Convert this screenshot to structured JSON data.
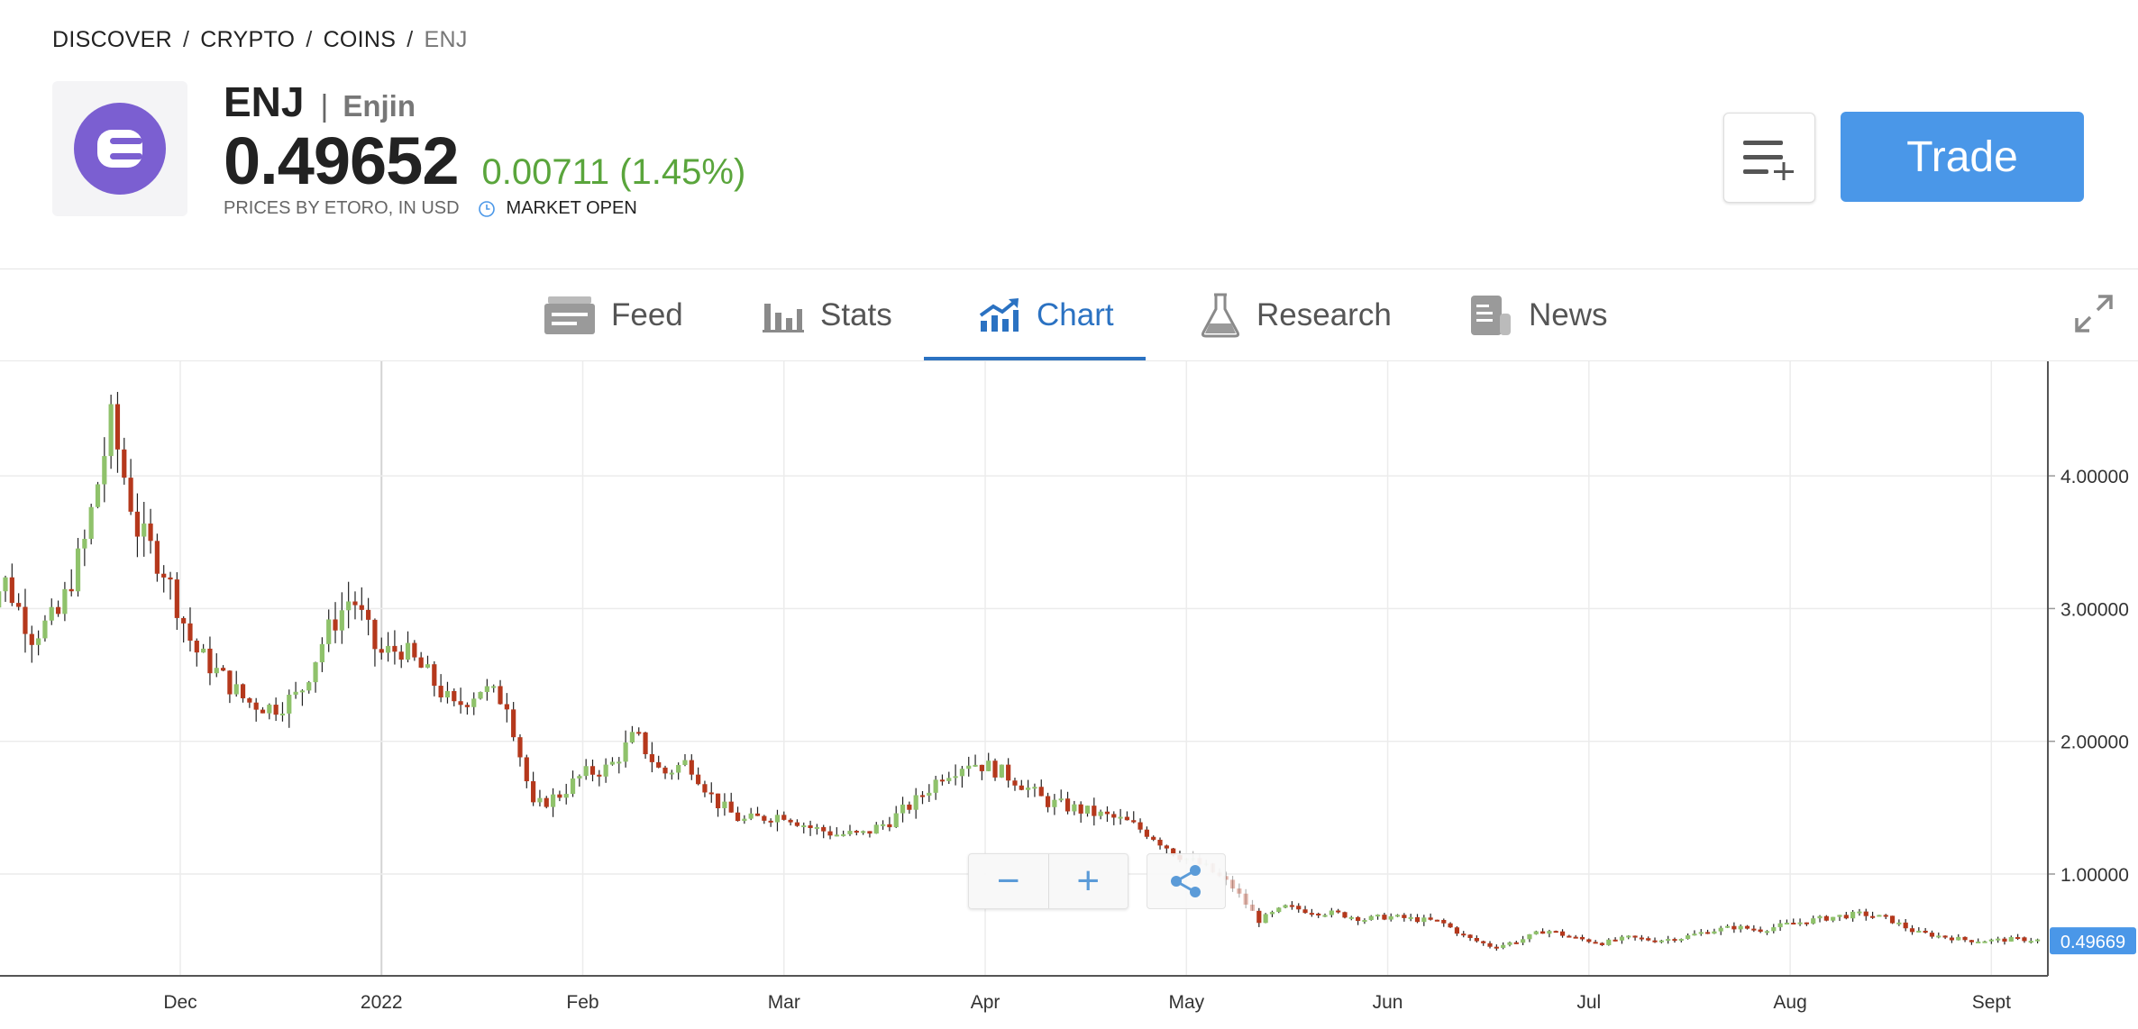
{
  "breadcrumb": [
    "DISCOVER",
    "CRYPTO",
    "COINS",
    "ENJ"
  ],
  "instrument": {
    "ticker": "ENJ",
    "separator": "|",
    "name": "Enjin",
    "price": "0.49652",
    "change": "0.00711 (1.45%)",
    "price_source": "PRICES BY ETORO, IN USD",
    "market_status": "MARKET OPEN",
    "logo_color": "#7b5fd1"
  },
  "actions": {
    "watchlist_icon": "add-to-list-icon",
    "trade_label": "Trade"
  },
  "tabs": [
    {
      "label": "Feed",
      "icon": "feed-icon"
    },
    {
      "label": "Stats",
      "icon": "stats-icon"
    },
    {
      "label": "Chart",
      "icon": "chart-icon",
      "active": true
    },
    {
      "label": "Research",
      "icon": "flask-icon"
    },
    {
      "label": "News",
      "icon": "news-icon"
    }
  ],
  "colors": {
    "accent": "#2b72c2",
    "trade": "#4a97e8",
    "up": "#8fc26b",
    "down": "#b5381c",
    "positive_text": "#5aa53c"
  },
  "chart_data": {
    "type": "candlestick",
    "x_ticks": [
      "Dec",
      "2022",
      "Feb",
      "Mar",
      "Apr",
      "May",
      "Jun",
      "Jul",
      "Aug",
      "Sept"
    ],
    "y_ticks": [
      "1.00000",
      "2.00000",
      "3.00000",
      "4.00000"
    ],
    "ylim": [
      0.1,
      4.7
    ],
    "grid": true,
    "current_price_label": "0.49669",
    "series": [
      {
        "date": "Nov 1",
        "value": 3.0
      },
      {
        "date": "Nov 5",
        "value": 3.2
      },
      {
        "date": "Nov 9",
        "value": 2.8
      },
      {
        "date": "Nov 13",
        "value": 2.95
      },
      {
        "date": "Nov 17",
        "value": 3.5
      },
      {
        "date": "Nov 21",
        "value": 4.4
      },
      {
        "date": "Nov 25",
        "value": 3.6
      },
      {
        "date": "Nov 29",
        "value": 3.3
      },
      {
        "date": "Dec 3",
        "value": 2.7
      },
      {
        "date": "Dec 7",
        "value": 2.5
      },
      {
        "date": "Dec 11",
        "value": 2.3
      },
      {
        "date": "Dec 15",
        "value": 2.25
      },
      {
        "date": "Dec 19",
        "value": 2.35
      },
      {
        "date": "Dec 23",
        "value": 2.8
      },
      {
        "date": "Dec 27",
        "value": 3.1
      },
      {
        "date": "Dec 31",
        "value": 2.65
      },
      {
        "date": "Jan 4",
        "value": 2.7
      },
      {
        "date": "Jan 8",
        "value": 2.5
      },
      {
        "date": "Jan 12",
        "value": 2.25
      },
      {
        "date": "Jan 16",
        "value": 2.4
      },
      {
        "date": "Jan 20",
        "value": 2.3
      },
      {
        "date": "Jan 24",
        "value": 1.5
      },
      {
        "date": "Jan 28",
        "value": 1.6
      },
      {
        "date": "Feb 1",
        "value": 1.75
      },
      {
        "date": "Feb 5",
        "value": 1.8
      },
      {
        "date": "Feb 9",
        "value": 2.05
      },
      {
        "date": "Feb 13",
        "value": 1.75
      },
      {
        "date": "Feb 17",
        "value": 1.85
      },
      {
        "date": "Feb 21",
        "value": 1.55
      },
      {
        "date": "Feb 25",
        "value": 1.4
      },
      {
        "date": "Mar 1",
        "value": 1.45
      },
      {
        "date": "Mar 5",
        "value": 1.35
      },
      {
        "date": "Mar 9",
        "value": 1.3
      },
      {
        "date": "Mar 13",
        "value": 1.3
      },
      {
        "date": "Mar 17",
        "value": 1.4
      },
      {
        "date": "Mar 21",
        "value": 1.55
      },
      {
        "date": "Mar 25",
        "value": 1.75
      },
      {
        "date": "Mar 29",
        "value": 1.85
      },
      {
        "date": "Apr 2",
        "value": 1.8
      },
      {
        "date": "Apr 6",
        "value": 1.7
      },
      {
        "date": "Apr 10",
        "value": 1.55
      },
      {
        "date": "Apr 14",
        "value": 1.5
      },
      {
        "date": "Apr 18",
        "value": 1.45
      },
      {
        "date": "Apr 22",
        "value": 1.4
      },
      {
        "date": "Apr 26",
        "value": 1.3
      },
      {
        "date": "Apr 30",
        "value": 1.15
      },
      {
        "date": "May 4",
        "value": 1.05
      },
      {
        "date": "May 8",
        "value": 0.9
      },
      {
        "date": "May 12",
        "value": 0.65
      },
      {
        "date": "May 16",
        "value": 0.75
      },
      {
        "date": "May 20",
        "value": 0.72
      },
      {
        "date": "May 24",
        "value": 0.7
      },
      {
        "date": "May 28",
        "value": 0.66
      },
      {
        "date": "Jun 1",
        "value": 0.68
      },
      {
        "date": "Jun 5",
        "value": 0.66
      },
      {
        "date": "Jun 9",
        "value": 0.64
      },
      {
        "date": "Jun 13",
        "value": 0.52
      },
      {
        "date": "Jun 17",
        "value": 0.45
      },
      {
        "date": "Jun 21",
        "value": 0.5
      },
      {
        "date": "Jun 25",
        "value": 0.58
      },
      {
        "date": "Jun 29",
        "value": 0.52
      },
      {
        "date": "Jul 3",
        "value": 0.48
      },
      {
        "date": "Jul 7",
        "value": 0.52
      },
      {
        "date": "Jul 11",
        "value": 0.5
      },
      {
        "date": "Jul 15",
        "value": 0.52
      },
      {
        "date": "Jul 19",
        "value": 0.57
      },
      {
        "date": "Jul 23",
        "value": 0.6
      },
      {
        "date": "Jul 27",
        "value": 0.58
      },
      {
        "date": "Jul 31",
        "value": 0.62
      },
      {
        "date": "Aug 4",
        "value": 0.65
      },
      {
        "date": "Aug 8",
        "value": 0.68
      },
      {
        "date": "Aug 12",
        "value": 0.7
      },
      {
        "date": "Aug 16",
        "value": 0.66
      },
      {
        "date": "Aug 20",
        "value": 0.56
      },
      {
        "date": "Aug 24",
        "value": 0.53
      },
      {
        "date": "Aug 28",
        "value": 0.5
      },
      {
        "date": "Sep 1",
        "value": 0.5
      },
      {
        "date": "Sep 5",
        "value": 0.51
      },
      {
        "date": "Sep 9",
        "value": 0.5
      },
      {
        "date": "Sep 13",
        "value": 0.497
      }
    ]
  }
}
